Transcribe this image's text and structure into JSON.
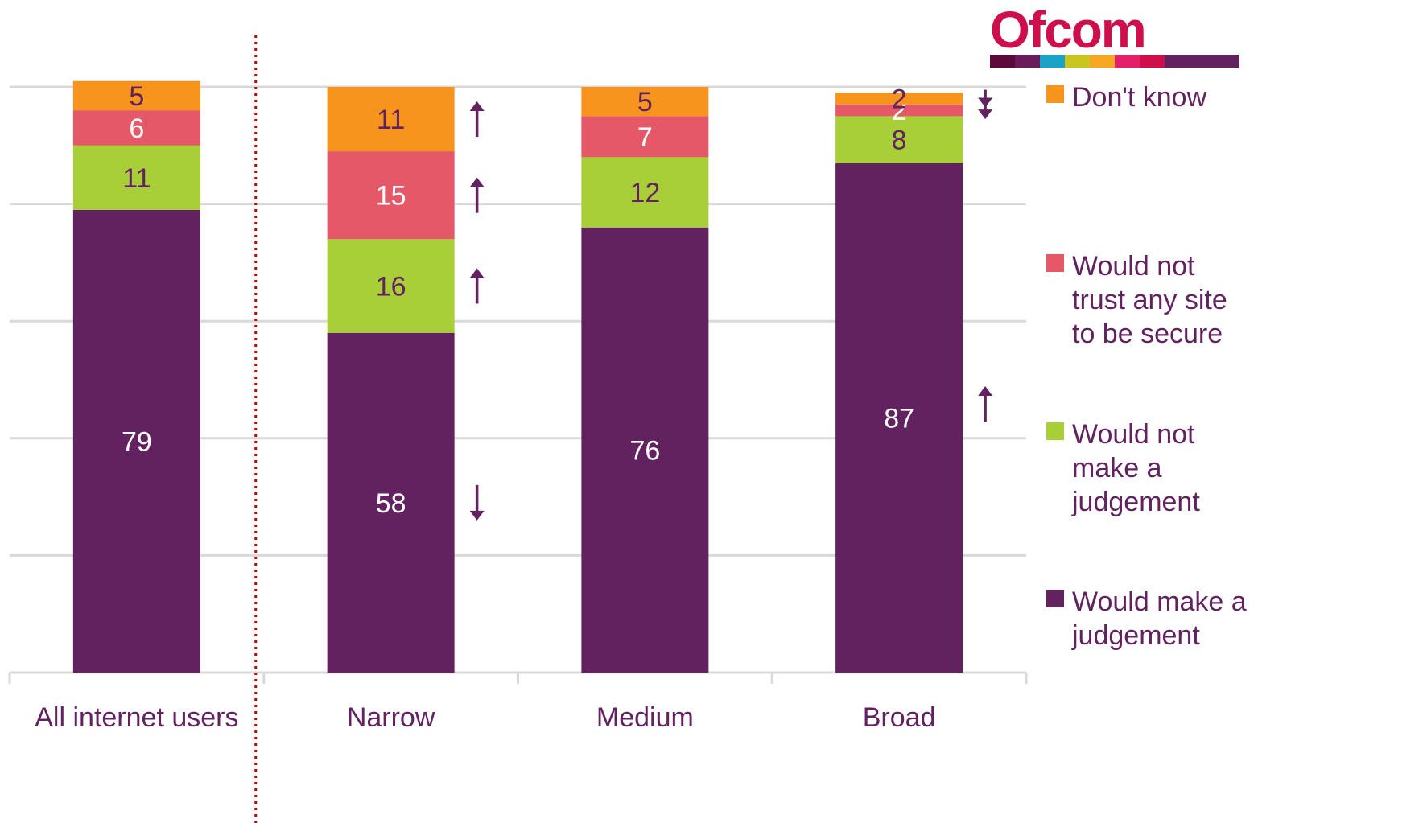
{
  "logo": {
    "text": "Ofcom",
    "stripe_colors": [
      "#5c0a3a",
      "#6a1b5a",
      "#1aa3c8",
      "#c9c71d",
      "#f7a823",
      "#e5206a",
      "#cf0f4b",
      "#62225f",
      "#62225f",
      "#62225f"
    ]
  },
  "chart_data": {
    "type": "bar",
    "stacked": true,
    "ylim": [
      0,
      100
    ],
    "grid": true,
    "legend_position": "right",
    "categories": [
      "All internet users",
      "Narrow",
      "Medium",
      "Broad"
    ],
    "series": [
      {
        "name": "Would make a judgement",
        "color": "#62225f",
        "label_color": "#ffffff",
        "values": [
          79,
          58,
          76,
          87
        ]
      },
      {
        "name": "Would not make a judgement",
        "color": "#a8cf38",
        "label_color": "#62225f",
        "values": [
          11,
          16,
          12,
          8
        ]
      },
      {
        "name": "Would not trust any site to be secure",
        "color": "#e45867",
        "label_color": "#ffffff",
        "values": [
          6,
          15,
          7,
          2
        ]
      },
      {
        "name": "Don't know",
        "color": "#f7941d",
        "label_color": "#62225f",
        "values": [
          5,
          11,
          5,
          2
        ]
      }
    ],
    "legend": [
      {
        "lines": [
          "Don't know"
        ],
        "color": "#f7941d"
      },
      {
        "lines": [
          "Would not",
          "trust any site",
          "to be secure"
        ],
        "color": "#e45867"
      },
      {
        "lines": [
          "Would not",
          "make a",
          "judgement"
        ],
        "color": "#a8cf38"
      },
      {
        "lines": [
          "Would make a",
          "judgement"
        ],
        "color": "#62225f"
      }
    ],
    "significance_markers": [
      {
        "category": "Narrow",
        "series": "Don't know",
        "direction": "up"
      },
      {
        "category": "Narrow",
        "series": "Would not trust any site to be secure",
        "direction": "up"
      },
      {
        "category": "Narrow",
        "series": "Would not make a judgement",
        "direction": "up"
      },
      {
        "category": "Narrow",
        "series": "Would make a judgement",
        "direction": "down"
      },
      {
        "category": "Broad",
        "series": "Don't know",
        "direction": "down"
      },
      {
        "category": "Broad",
        "series": "Would not trust any site to be secure",
        "direction": "down"
      },
      {
        "category": "Broad",
        "series": "Would make a judgement",
        "direction": "up"
      }
    ],
    "colors": {
      "text": "#62225f",
      "grid": "#d9d9d9",
      "axis": "#d9d9d9",
      "divider": "#c00000",
      "arrow": "#62225f"
    }
  }
}
